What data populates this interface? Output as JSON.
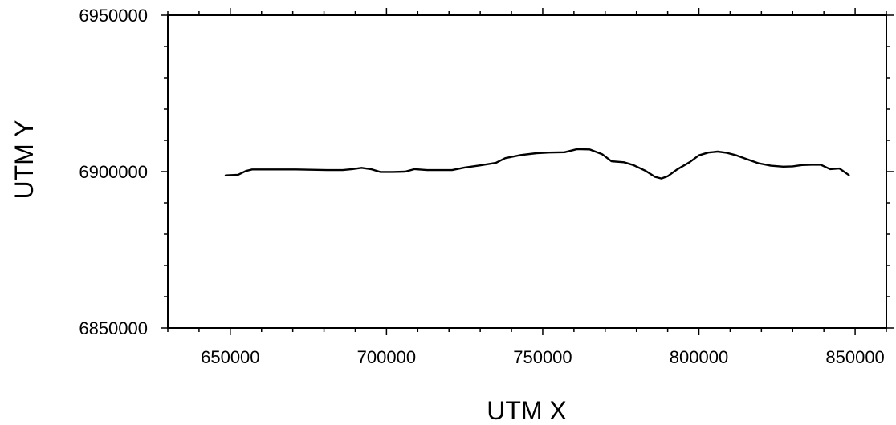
{
  "chart_data": {
    "type": "line",
    "title": "",
    "xlabel": "UTM X",
    "ylabel": "UTM Y",
    "xlim": [
      630000,
      860000
    ],
    "ylim": [
      6850000,
      6950000
    ],
    "xticks": [
      {
        "value": 650000,
        "label": "650000"
      },
      {
        "value": 700000,
        "label": "700000"
      },
      {
        "value": 750000,
        "label": "750000"
      },
      {
        "value": 800000,
        "label": "800000"
      },
      {
        "value": 850000,
        "label": "850000"
      }
    ],
    "yticks": [
      {
        "value": 6850000,
        "label": "6850000"
      },
      {
        "value": 6900000,
        "label": "6900000"
      },
      {
        "value": 6950000,
        "label": "6950000"
      }
    ],
    "x_minor_step": 10000,
    "y_minor_step": 10000,
    "grid": false,
    "legend": "none",
    "line_color": "#000000",
    "series": [
      {
        "x": [
          648500,
          652500,
          655000,
          657000,
          662000,
          667000,
          671000,
          676000,
          681000,
          686000,
          689000,
          692000,
          695000,
          698000,
          702000,
          706000,
          709000,
          713000,
          718000,
          721000,
          725000,
          730000,
          735000,
          738000,
          743000,
          748000,
          752000,
          757000,
          761000,
          765000,
          769000,
          772000,
          776000,
          779000,
          783000,
          786000,
          788000,
          790000,
          793000,
          797000,
          800000,
          803000,
          806000,
          809000,
          812000,
          815000,
          819000,
          823000,
          827000,
          830000,
          833000,
          836000,
          839000,
          842000,
          845000,
          848000
        ],
        "y": [
          6898800,
          6899000,
          6900200,
          6900700,
          6900700,
          6900700,
          6900700,
          6900600,
          6900500,
          6900500,
          6900800,
          6901200,
          6900800,
          6899900,
          6899900,
          6900000,
          6900800,
          6900500,
          6900500,
          6900500,
          6901300,
          6902000,
          6902800,
          6904300,
          6905300,
          6905900,
          6906100,
          6906200,
          6907200,
          6907100,
          6905600,
          6903300,
          6903000,
          6902100,
          6900200,
          6898300,
          6897800,
          6898500,
          6900700,
          6903000,
          6905200,
          6906100,
          6906400,
          6906000,
          6905200,
          6904100,
          6902700,
          6901900,
          6901600,
          6901700,
          6902100,
          6902200,
          6902200,
          6900800,
          6901000,
          6898900
        ]
      }
    ]
  }
}
